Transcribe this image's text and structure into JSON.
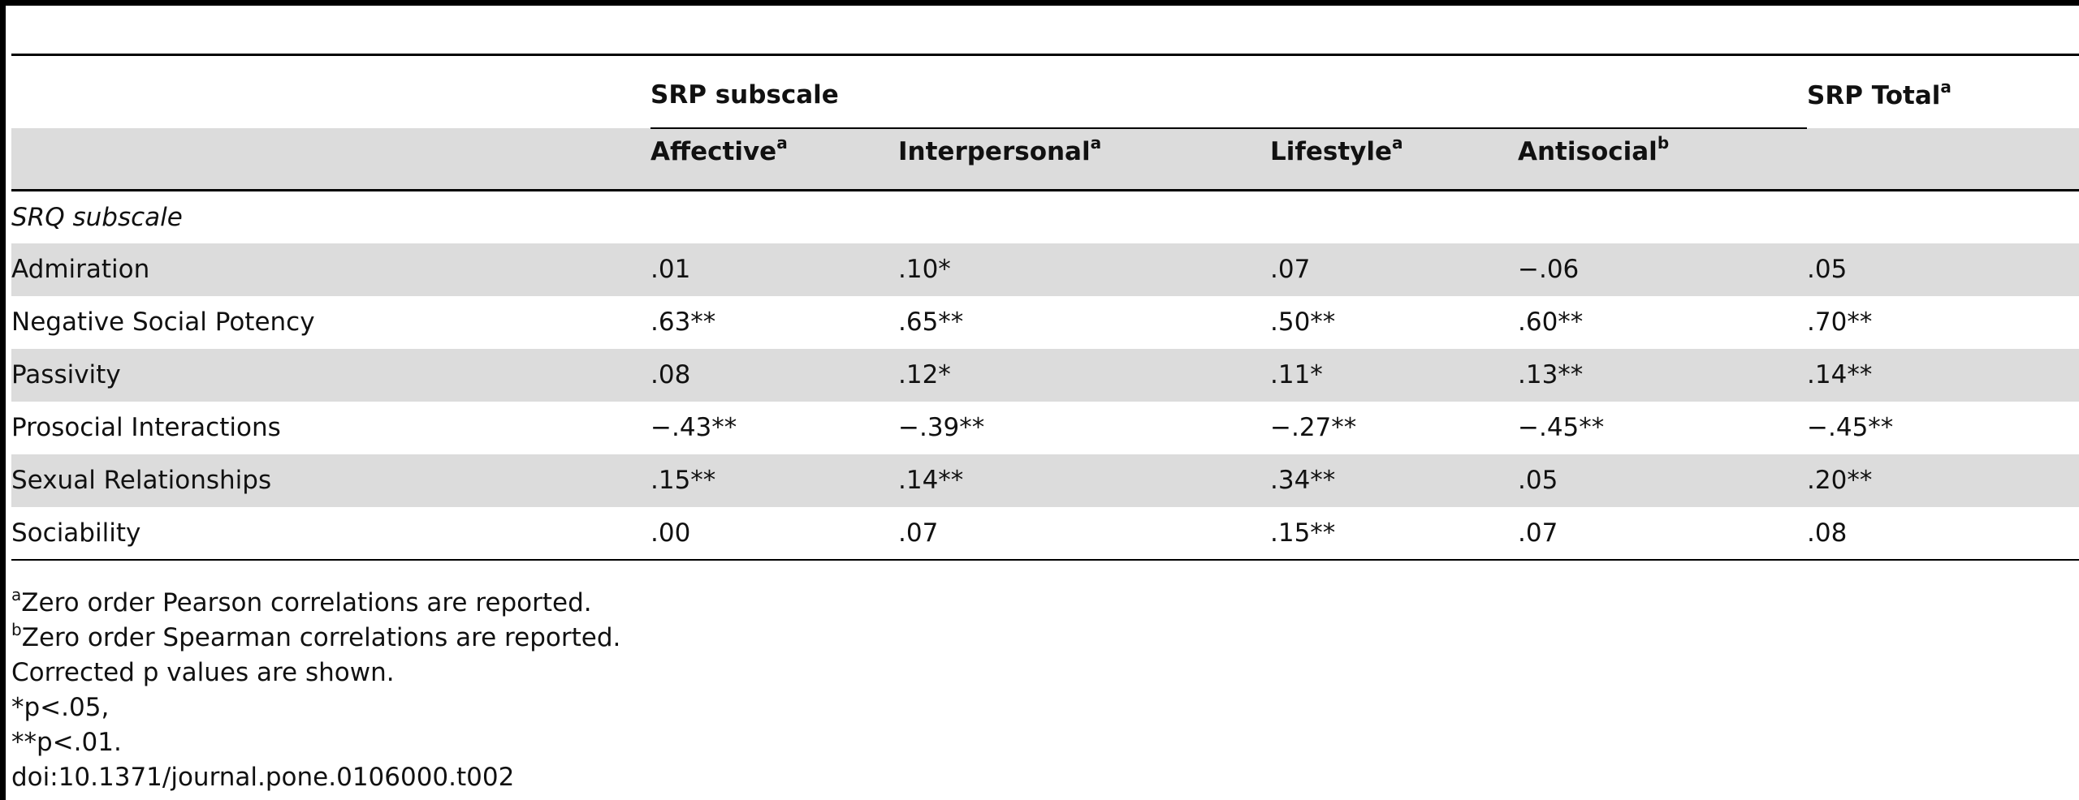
{
  "table": {
    "group_header": "SRP subscale",
    "total_header": "SRP Total",
    "total_header_sup": "a",
    "columns": [
      {
        "label": "Affective",
        "sup": "a"
      },
      {
        "label": "Interpersonal",
        "sup": "a"
      },
      {
        "label": "Lifestyle",
        "sup": "a"
      },
      {
        "label": "Antisocial",
        "sup": "b"
      }
    ],
    "section_label": "SRQ subscale",
    "rows": [
      {
        "label": "Admiration",
        "values": [
          ".01",
          ".10*",
          ".07",
          "−.06",
          ".05"
        ]
      },
      {
        "label": "Negative Social Potency",
        "values": [
          ".63**",
          ".65**",
          ".50**",
          ".60**",
          ".70**"
        ]
      },
      {
        "label": "Passivity",
        "values": [
          ".08",
          ".12*",
          ".11*",
          ".13**",
          ".14**"
        ]
      },
      {
        "label": "Prosocial Interactions",
        "values": [
          "−.43**",
          "−.39**",
          "−.27**",
          "−.45**",
          "−.45**"
        ]
      },
      {
        "label": "Sexual Relationships",
        "values": [
          ".15**",
          ".14**",
          ".34**",
          ".05",
          ".20**"
        ]
      },
      {
        "label": "Sociability",
        "values": [
          ".00",
          ".07",
          ".15**",
          ".07",
          ".08"
        ]
      }
    ]
  },
  "notes": {
    "note_a_sup": "a",
    "note_a": "Zero order Pearson correlations are reported.",
    "note_b_sup": "b",
    "note_b": "Zero order Spearman correlations are reported.",
    "corrected": "Corrected p values are shown.",
    "p05": "*p<.05,",
    "p01": "**p<.01.",
    "doi": "doi:10.1371/journal.pone.0106000.t002"
  }
}
